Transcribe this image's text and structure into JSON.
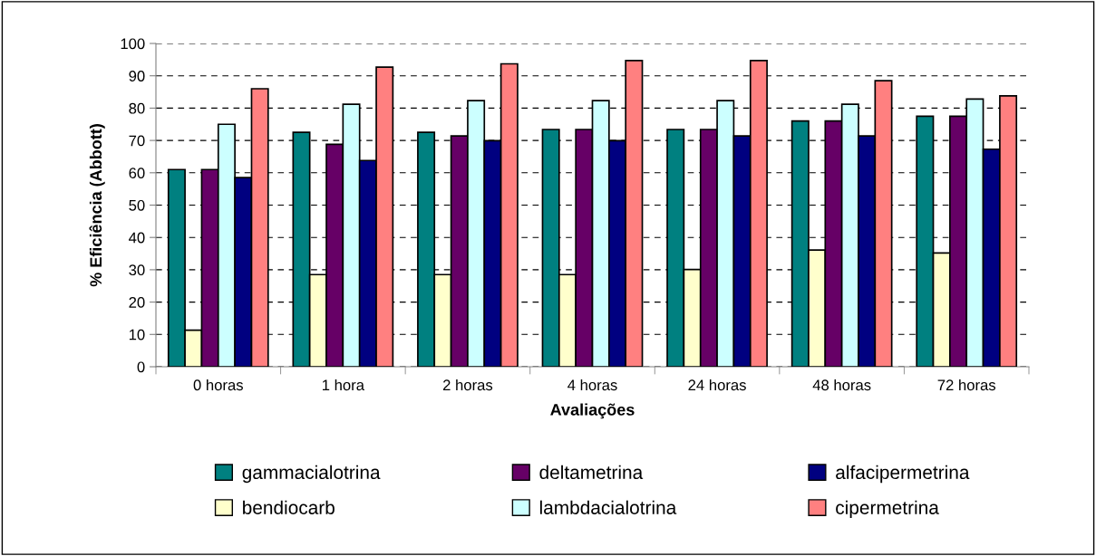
{
  "chart_data": {
    "type": "bar",
    "xlabel": "Avaliações",
    "ylabel": "% Eficiência (Abbott)",
    "categories": [
      "0 horas",
      "1 hora",
      "2 horas",
      "4 horas",
      "24 horas",
      "48 horas",
      "72 horas"
    ],
    "series": [
      {
        "name": "gammacialotrina",
        "color": "#008080",
        "values": [
          61.0,
          72.5,
          72.5,
          73.4,
          73.4,
          76.0,
          77.5
        ]
      },
      {
        "name": "bendiocarb",
        "color": "#ffffcc",
        "values": [
          11.3,
          28.5,
          28.5,
          28.5,
          30.1,
          36.1,
          35.2
        ]
      },
      {
        "name": "deltametrina",
        "color": "#660066",
        "values": [
          61.0,
          68.8,
          71.4,
          73.4,
          73.4,
          76.0,
          77.5
        ]
      },
      {
        "name": "lambdacialotrina",
        "color": "#ccffff",
        "values": [
          75.0,
          81.2,
          82.3,
          82.3,
          82.3,
          81.2,
          82.8
        ]
      },
      {
        "name": "alfacipermetrina",
        "color": "#000080",
        "values": [
          58.5,
          63.8,
          69.9,
          69.9,
          71.4,
          71.4,
          67.3
        ]
      },
      {
        "name": "cipermetrina",
        "color": "#ff8080",
        "values": [
          86.0,
          92.7,
          93.7,
          94.7,
          94.7,
          88.5,
          83.8
        ]
      }
    ],
    "ylim": [
      0,
      100
    ],
    "yticks": [
      0,
      10,
      20,
      30,
      40,
      50,
      60,
      70,
      80,
      90,
      100
    ],
    "grid": "y",
    "legend": "bottom"
  }
}
